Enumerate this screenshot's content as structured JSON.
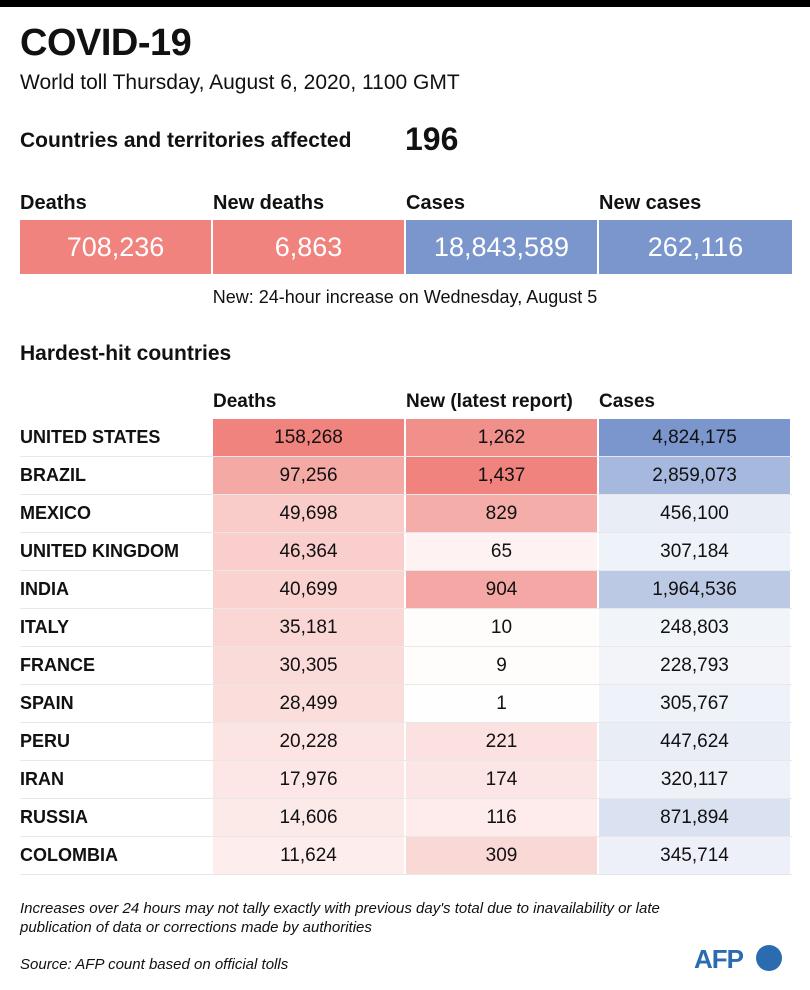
{
  "header": {
    "title": "COVID-19",
    "subtitle": "World toll Thursday, August 6, 2020, 1100 GMT",
    "affected_label": "Countries and territories affected",
    "affected_value": "196"
  },
  "kpis": [
    {
      "label": "Deaths",
      "value": "708,236",
      "color": "#f0837e"
    },
    {
      "label": "New deaths",
      "value": "6,863",
      "color": "#f0837e"
    },
    {
      "label": "Cases",
      "value": "18,843,589",
      "color": "#7b96cc"
    },
    {
      "label": "New cases",
      "value": "262,116",
      "color": "#7b96cc"
    }
  ],
  "note": "New: 24-hour increase on Wednesday, August 5",
  "section_title": "Hardest-hit countries",
  "chart_data": {
    "type": "table",
    "columns": [
      "Deaths",
      "New (latest report)",
      "Cases"
    ],
    "rows": [
      {
        "country": "UNITED STATES",
        "deaths": 158268,
        "new": 1262,
        "cases": 4824175
      },
      {
        "country": "BRAZIL",
        "deaths": 97256,
        "new": 1437,
        "cases": 2859073
      },
      {
        "country": "MEXICO",
        "deaths": 49698,
        "new": 829,
        "cases": 456100
      },
      {
        "country": "UNITED KINGDOM",
        "deaths": 46364,
        "new": 65,
        "cases": 307184
      },
      {
        "country": "INDIA",
        "deaths": 40699,
        "new": 904,
        "cases": 1964536
      },
      {
        "country": "ITALY",
        "deaths": 35181,
        "new": 10,
        "cases": 248803
      },
      {
        "country": "FRANCE",
        "deaths": 30305,
        "new": 9,
        "cases": 228793
      },
      {
        "country": "SPAIN",
        "deaths": 28499,
        "new": 1,
        "cases": 305767
      },
      {
        "country": "PERU",
        "deaths": 20228,
        "new": 221,
        "cases": 447624
      },
      {
        "country": "IRAN",
        "deaths": 17976,
        "new": 174,
        "cases": 320117
      },
      {
        "country": "RUSSIA",
        "deaths": 14606,
        "new": 116,
        "cases": 871894
      },
      {
        "country": "COLOMBIA",
        "deaths": 11624,
        "new": 309,
        "cases": 345714
      }
    ],
    "colors": {
      "deaths_scale": "#f0837e",
      "new_scale": "#f0837e",
      "cases_scale": "#7b96cc"
    }
  },
  "footnote": "Increases over 24 hours may not tally exactly with previous day's total due to inavailability or late publication of data or corrections made by authorities",
  "source": "Source: AFP count based on official tolls",
  "logo_text": "AFP"
}
